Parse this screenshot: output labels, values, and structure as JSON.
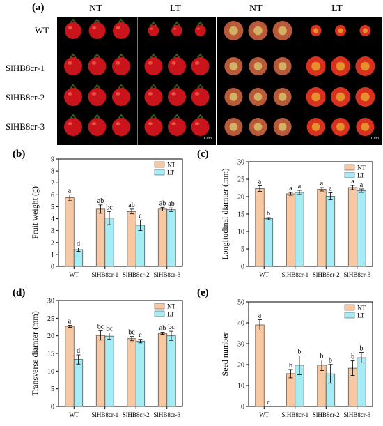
{
  "panel_a": {
    "letter": "(a)",
    "col_headers": [
      "NT",
      "LT",
      "NT",
      "LT"
    ],
    "row_labels": [
      "WT",
      "SlHB8cr-1",
      "SlHB8cr-2",
      "SlHB8cr-3"
    ],
    "scale_label": "1 cm",
    "colors": {
      "fruit": "#c8141a",
      "fruit_highlight": "#ff6a5a",
      "stem": "#3d5a1f",
      "background": "#000000",
      "section_flesh": "#b85a3a",
      "section_locule": "#d8c16a"
    }
  },
  "legend": {
    "nt": "NT",
    "lt": "LT"
  },
  "colors": {
    "nt": "#f8c8a2",
    "lt": "#a6ecf4",
    "bar_stroke": "#555555"
  },
  "chart_data": [
    {
      "type": "bar",
      "panel": "(b)",
      "title": "",
      "xlabel": "",
      "ylabel": "Fruit weight (g)",
      "categories": [
        "WT",
        "SlHB8cr-1",
        "SlHB8cr-2",
        "SlHB8cr-3"
      ],
      "ylim": [
        0,
        9
      ],
      "yticks": [
        0,
        1,
        2,
        3,
        4,
        5,
        6,
        7,
        8,
        9
      ],
      "series": [
        {
          "name": "NT",
          "values": [
            5.75,
            4.8,
            4.6,
            4.8
          ],
          "errors": [
            0.25,
            0.35,
            0.2,
            0.15
          ],
          "letters": [
            "a",
            "ab",
            "ab",
            "ab"
          ]
        },
        {
          "name": "LT",
          "values": [
            1.4,
            4.05,
            3.45,
            4.75
          ],
          "errors": [
            0.15,
            0.55,
            0.45,
            0.15
          ],
          "letters": [
            "d",
            "bc",
            "c",
            "ab"
          ]
        }
      ],
      "legend": "top-right"
    },
    {
      "type": "bar",
      "panel": "(c)",
      "title": "",
      "xlabel": "",
      "ylabel": "Longitudinal diamter (mm)",
      "categories": [
        "WT",
        "SlHB8cr-1",
        "SlHB8cr-2",
        "SlHB8cr-3"
      ],
      "ylim": [
        0,
        30
      ],
      "yticks": [
        0,
        5,
        10,
        15,
        20,
        25,
        30
      ],
      "series": [
        {
          "name": "NT",
          "values": [
            22.3,
            20.8,
            22.1,
            22.6
          ],
          "errors": [
            0.8,
            0.4,
            0.5,
            0.6
          ],
          "letters": [
            "a",
            "a",
            "a",
            "a"
          ]
        },
        {
          "name": "LT",
          "values": [
            13.7,
            21.2,
            20.1,
            21.7
          ],
          "errors": [
            0.3,
            0.6,
            1.0,
            0.5
          ],
          "letters": [
            "b",
            "a",
            "a",
            "a"
          ]
        }
      ],
      "legend": "top-right"
    },
    {
      "type": "bar",
      "panel": "(d)",
      "title": "",
      "xlabel": "",
      "ylabel": "Transverse diamter (mm)",
      "categories": [
        "WT",
        "SlHB8cr-1",
        "SlHB8cr-2",
        "SlHB8cr-3"
      ],
      "ylim": [
        0,
        30
      ],
      "yticks": [
        0,
        5,
        10,
        15,
        20,
        25,
        30
      ],
      "series": [
        {
          "name": "NT",
          "values": [
            22.7,
            20.1,
            19.2,
            20.7
          ],
          "errors": [
            0.3,
            1.3,
            0.6,
            0.3
          ],
          "letters": [
            "a",
            "bc",
            "bc",
            "ab"
          ]
        },
        {
          "name": "LT",
          "values": [
            13.3,
            19.9,
            18.5,
            20.0
          ],
          "errors": [
            1.3,
            0.9,
            0.5,
            1.3
          ],
          "letters": [
            "d",
            "bc",
            "c",
            "bc"
          ]
        }
      ],
      "legend": "top-right"
    },
    {
      "type": "bar",
      "panel": "(e)",
      "title": "",
      "xlabel": "",
      "ylabel": "Seed number",
      "categories": [
        "WT",
        "SlHB8cr-1",
        "SlHB8cr-2",
        "SlHB8cr-3"
      ],
      "ylim": [
        0,
        50
      ],
      "yticks": [
        0,
        10,
        20,
        30,
        40,
        50
      ],
      "series": [
        {
          "name": "NT",
          "values": [
            39.0,
            15.7,
            19.7,
            18.3
          ],
          "errors": [
            2.5,
            2.0,
            2.5,
            3.5
          ],
          "letters": [
            "a",
            "b",
            "b",
            "b"
          ]
        },
        {
          "name": "LT",
          "values": [
            0,
            19.7,
            15.6,
            23.3
          ],
          "errors": [
            0,
            4.5,
            4.5,
            2.5
          ],
          "letters": [
            "c",
            "b",
            "b",
            "b"
          ]
        }
      ],
      "legend": "top-right"
    }
  ]
}
